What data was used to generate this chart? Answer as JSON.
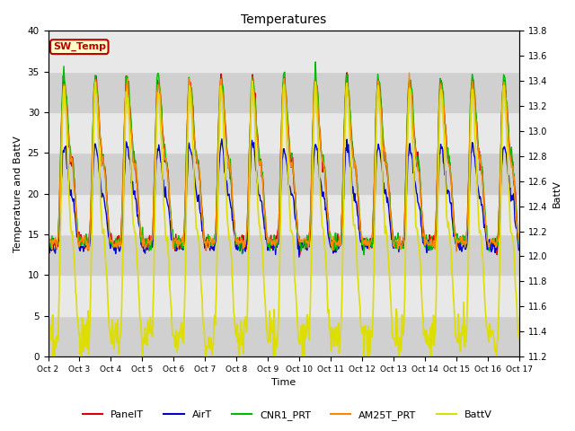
{
  "title": "Temperatures",
  "xlabel": "Time",
  "ylabel_left": "Temperature and BattV",
  "ylabel_right": "BattV",
  "ylim_left": [
    0,
    40
  ],
  "ylim_right": [
    11.2,
    13.8
  ],
  "xtick_labels": [
    "Oct 2",
    "Oct 3",
    "Oct 4",
    "Oct 5",
    "Oct 6",
    "Oct 7",
    "Oct 8",
    "Oct 9",
    "Oct 10",
    "Oct 11",
    "Oct 12",
    "Oct 13",
    "Oct 14",
    "Oct 15",
    "Oct 16",
    "Oct 17"
  ],
  "annotation_text": "SW_Temp",
  "annotation_color": "#bb0000",
  "annotation_bg": "#ffffcc",
  "bg_band_colors": [
    "#d8d8d8",
    "#ebebeb"
  ],
  "series": {
    "PanelT": {
      "color": "#dd0000",
      "lw": 1.0
    },
    "AirT": {
      "color": "#0000cc",
      "lw": 1.0
    },
    "CNR1_PRT": {
      "color": "#00bb00",
      "lw": 1.0
    },
    "AM25T_PRT": {
      "color": "#ff8800",
      "lw": 1.0
    },
    "BattV": {
      "color": "#dddd00",
      "lw": 1.2
    }
  },
  "n_days": 15,
  "n_points": 720
}
